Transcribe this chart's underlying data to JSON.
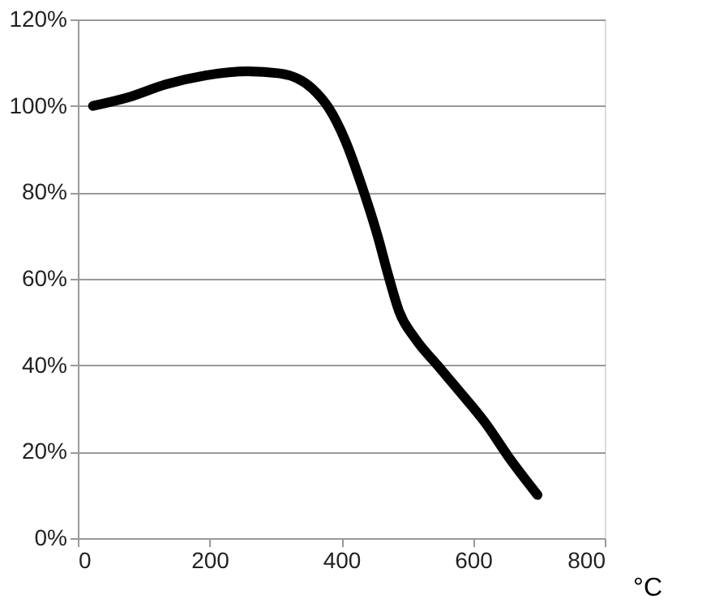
{
  "chart_data": {
    "type": "line",
    "xlabel": "°C",
    "x": [
      23,
      77,
      134,
      192,
      258,
      307,
      356,
      381,
      406,
      430,
      455,
      471,
      488,
      513,
      546,
      587,
      620,
      653,
      698
    ],
    "series": [
      {
        "color": "#000000",
        "values": [
          100,
          102,
          105,
          107,
          108,
          107.5,
          104,
          99.5,
          92,
          82,
          70,
          61,
          52.4,
          46,
          40,
          32.6,
          26.4,
          19,
          10
        ]
      }
    ],
    "xlim": [
      0,
      800
    ],
    "xticks": [
      0,
      200,
      400,
      600,
      800
    ],
    "ylim": [
      0,
      120
    ],
    "yticks": [
      {
        "value": 0,
        "label": "0%"
      },
      {
        "value": 20,
        "label": "20%"
      },
      {
        "value": 40,
        "label": "40%"
      },
      {
        "value": 60,
        "label": "60%"
      },
      {
        "value": 80,
        "label": "80%"
      },
      {
        "value": 100,
        "label": "100%"
      },
      {
        "value": 120,
        "label": "120%"
      }
    ],
    "grid": "y",
    "marker": "none",
    "line_style": "solid",
    "legend": false
  }
}
